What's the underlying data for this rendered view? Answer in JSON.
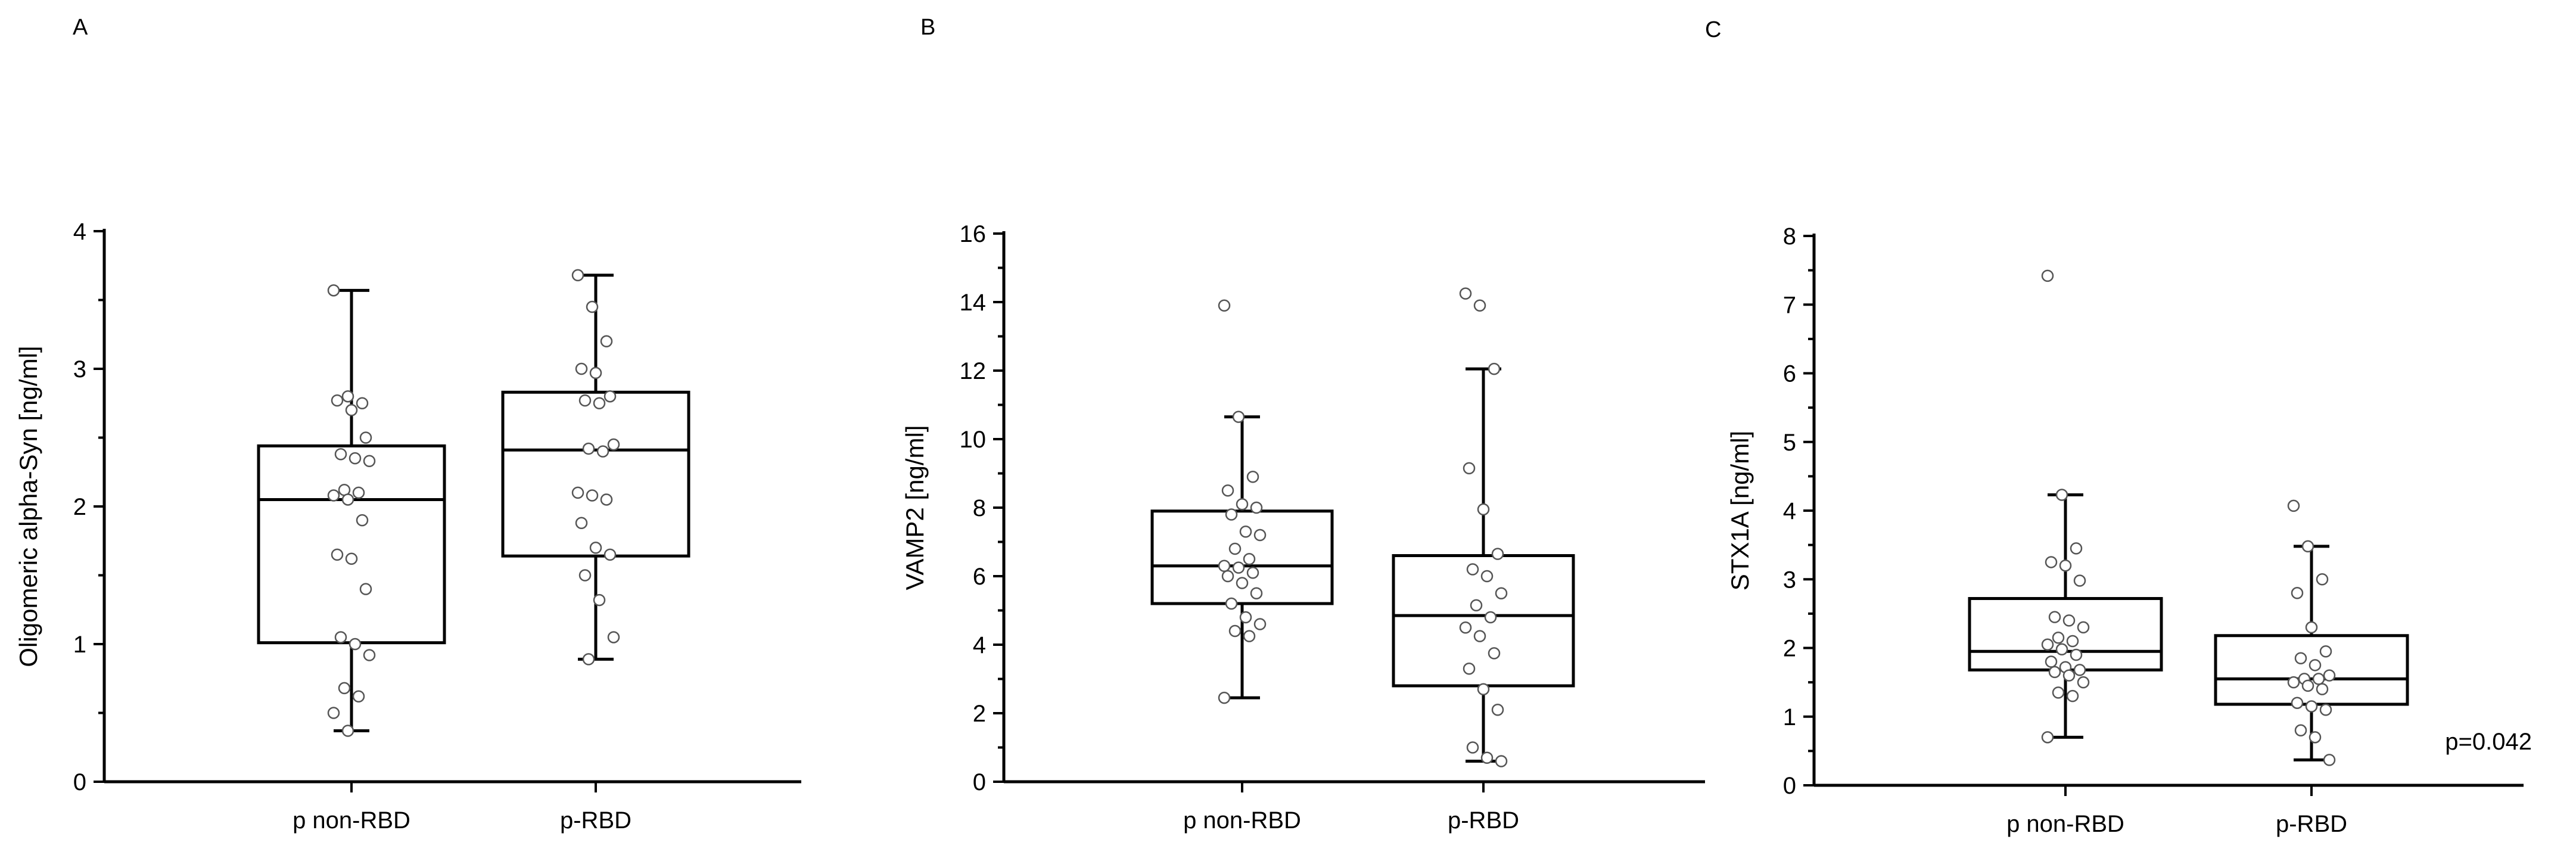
{
  "chart_data": [
    {
      "type": "box",
      "panel": "A",
      "title": "",
      "xlabel": "",
      "ylabel": "Oligomeric alpha-Syn [ng/ml]",
      "ylim": [
        0,
        4
      ],
      "yticks": [
        "0",
        "1",
        "2",
        "3",
        "4"
      ],
      "categories": [
        "p non-RBD",
        "p-RBD"
      ],
      "groups": [
        {
          "name": "p non-RBD",
          "min": 0.37,
          "q1": 1.01,
          "median": 2.05,
          "q3": 2.44,
          "max": 3.57,
          "points": [
            3.57,
            2.8,
            2.75,
            2.77,
            2.7,
            2.5,
            2.38,
            2.35,
            2.33,
            2.12,
            2.1,
            2.08,
            2.05,
            1.9,
            1.65,
            1.62,
            1.4,
            1.05,
            1.0,
            0.92,
            0.68,
            0.62,
            0.5,
            0.37
          ]
        },
        {
          "name": "p-RBD",
          "min": 0.89,
          "q1": 1.64,
          "median": 2.41,
          "q3": 2.83,
          "max": 3.68,
          "points": [
            3.68,
            3.45,
            3.2,
            3.0,
            2.97,
            2.8,
            2.77,
            2.75,
            2.45,
            2.42,
            2.4,
            2.1,
            2.08,
            2.05,
            1.88,
            1.7,
            1.65,
            1.5,
            1.32,
            1.05,
            0.89
          ]
        }
      ],
      "annotation": ""
    },
    {
      "type": "box",
      "panel": "B",
      "title": "",
      "xlabel": "",
      "ylabel": "VAMP2 [ng/ml]",
      "ylim": [
        0,
        16
      ],
      "yticks": [
        "0",
        "2",
        "4",
        "6",
        "8",
        "10",
        "12",
        "14",
        "16"
      ],
      "categories": [
        "p non-RBD",
        "p-RBD"
      ],
      "groups": [
        {
          "name": "p non-RBD",
          "min": 2.45,
          "q1": 5.2,
          "median": 6.3,
          "q3": 7.9,
          "max": 10.65,
          "points": [
            13.9,
            10.65,
            8.9,
            8.5,
            8.1,
            8.0,
            7.8,
            7.3,
            7.2,
            6.8,
            6.5,
            6.3,
            6.25,
            6.1,
            6.0,
            5.8,
            5.5,
            5.2,
            4.8,
            4.6,
            4.4,
            4.25,
            2.45
          ]
        },
        {
          "name": "p-RBD",
          "min": 0.6,
          "q1": 2.8,
          "median": 4.85,
          "q3": 6.6,
          "max": 12.05,
          "points": [
            14.25,
            13.9,
            12.05,
            9.15,
            7.95,
            6.65,
            6.2,
            6.0,
            5.5,
            5.15,
            4.8,
            4.5,
            4.25,
            3.75,
            3.3,
            2.7,
            2.1,
            1.0,
            0.7,
            0.6
          ]
        }
      ],
      "annotation": ""
    },
    {
      "type": "box",
      "panel": "C",
      "title": "",
      "xlabel": "",
      "ylabel": "STX1A [ng/ml]",
      "ylim": [
        0,
        8
      ],
      "yticks": [
        "0",
        "1",
        "2",
        "3",
        "4",
        "5",
        "6",
        "7",
        "8"
      ],
      "categories": [
        "p non-RBD",
        "p-RBD"
      ],
      "groups": [
        {
          "name": "p non-RBD",
          "min": 0.7,
          "q1": 1.68,
          "median": 1.95,
          "q3": 2.72,
          "max": 4.23,
          "points": [
            7.42,
            4.23,
            3.45,
            3.25,
            3.2,
            2.98,
            2.45,
            2.4,
            2.3,
            2.15,
            2.1,
            2.05,
            1.98,
            1.9,
            1.8,
            1.72,
            1.68,
            1.65,
            1.6,
            1.5,
            1.35,
            1.3,
            0.7
          ]
        },
        {
          "name": "p-RBD",
          "min": 0.37,
          "q1": 1.18,
          "median": 1.55,
          "q3": 2.18,
          "max": 3.48,
          "points": [
            4.07,
            3.48,
            3.0,
            2.8,
            2.3,
            1.95,
            1.85,
            1.75,
            1.6,
            1.55,
            1.55,
            1.5,
            1.45,
            1.4,
            1.2,
            1.15,
            1.1,
            0.8,
            0.7,
            0.37
          ]
        }
      ],
      "annotation": "p=0.042"
    }
  ]
}
